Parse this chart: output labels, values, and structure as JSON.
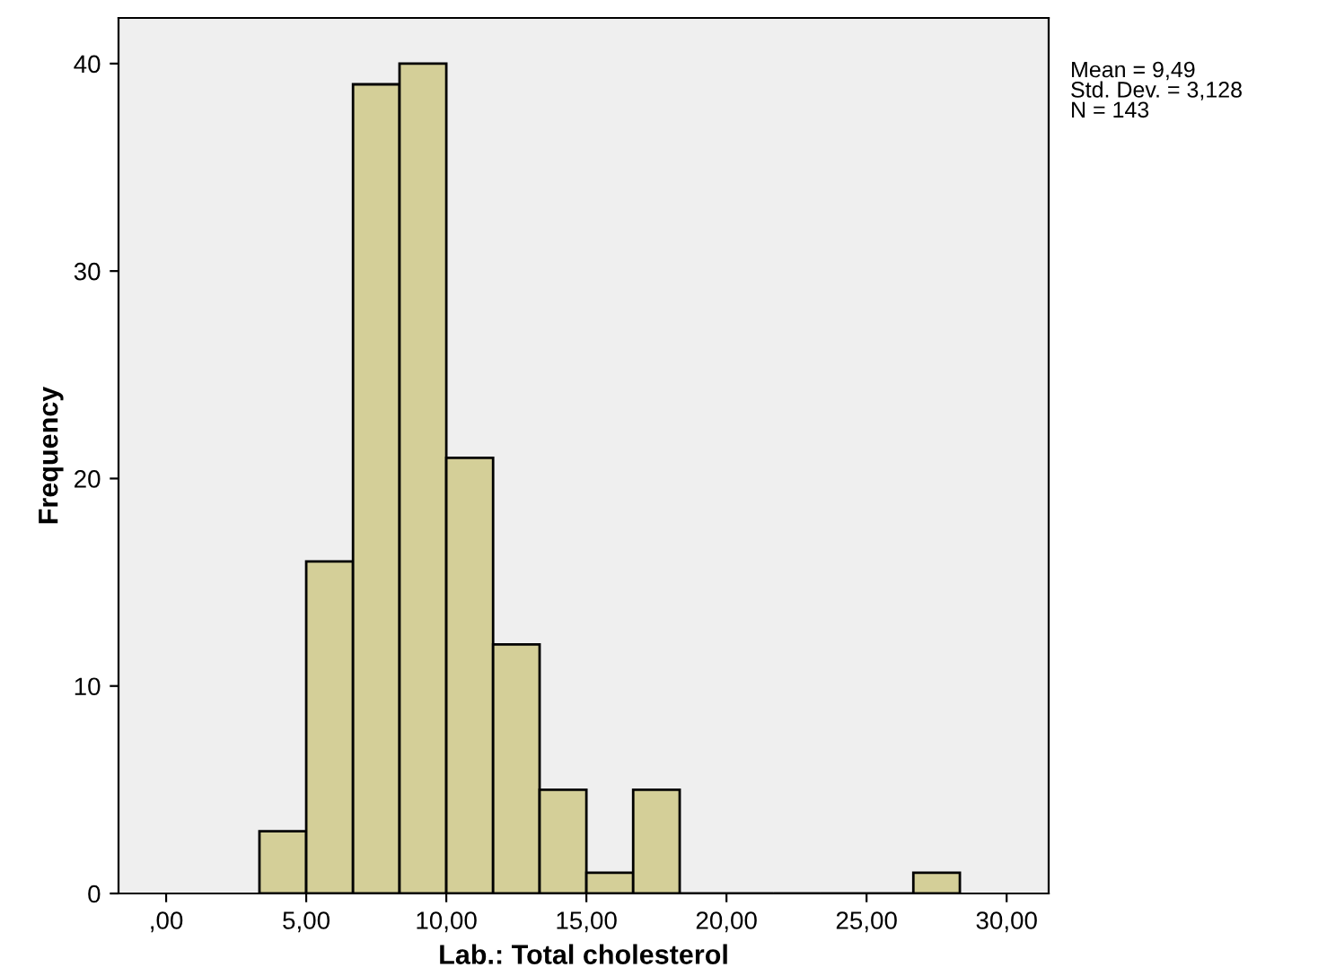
{
  "chart_data": {
    "type": "histogram",
    "xlabel": "Lab.: Total cholesterol",
    "ylabel": "Frequency",
    "bins": [
      3.33,
      5.0,
      6.67,
      8.33,
      10.0,
      11.67,
      13.33,
      15.0,
      16.67,
      18.33,
      20.0,
      21.67,
      23.33,
      25.0,
      26.67,
      28.33
    ],
    "values": [
      3,
      16,
      39,
      40,
      21,
      12,
      5,
      1,
      5,
      0,
      0,
      0,
      0,
      0,
      1
    ],
    "color": "#d4cf98",
    "xlim": [
      -1.7,
      31.5
    ],
    "ylim": [
      0,
      42.2
    ],
    "xticks": [
      {
        "value": 0,
        "label": ",00"
      },
      {
        "value": 5,
        "label": "5,00"
      },
      {
        "value": 10,
        "label": "10,00"
      },
      {
        "value": 15,
        "label": "15,00"
      },
      {
        "value": 20,
        "label": "20,00"
      },
      {
        "value": 25,
        "label": "25,00"
      },
      {
        "value": 30,
        "label": "30,00"
      }
    ],
    "yticks": [
      0,
      10,
      20,
      30,
      40
    ],
    "grid": false,
    "legend": false,
    "annotations": [
      "Mean = 9,49\nStd. Dev. = 3,128\nN = 143"
    ]
  }
}
